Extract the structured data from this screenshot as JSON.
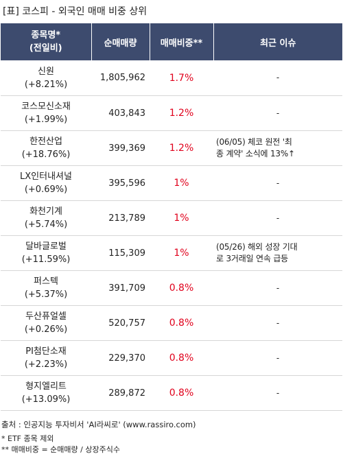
{
  "title": "[표] 코스피 - 외국인 매매 비중 상위",
  "headers": {
    "name_line1": "종목명*",
    "name_line2": "(전일비)",
    "volume": "순매매량",
    "ratio": "매매비중**",
    "issue": "최근 이슈"
  },
  "rows": [
    {
      "name": "신원",
      "change": "(+8.21%)",
      "volume": "1,805,962",
      "ratio": "1.7%",
      "issue_line1": "-",
      "issue_line2": ""
    },
    {
      "name": "코스모신소재",
      "change": "(+1.99%)",
      "volume": "403,843",
      "ratio": "1.2%",
      "issue_line1": "-",
      "issue_line2": ""
    },
    {
      "name": "한전산업",
      "change": "(+18.76%)",
      "volume": "399,369",
      "ratio": "1.2%",
      "issue_line1": "(06/05) 체코 원전 '최",
      "issue_line2": "종 계약' 소식에 13%↑"
    },
    {
      "name": "LX인터내셔널",
      "change": "(+0.69%)",
      "volume": "395,596",
      "ratio": "1%",
      "issue_line1": "-",
      "issue_line2": ""
    },
    {
      "name": "화천기계",
      "change": "(+5.74%)",
      "volume": "213,789",
      "ratio": "1%",
      "issue_line1": "-",
      "issue_line2": ""
    },
    {
      "name": "달바글로벌",
      "change": "(+11.59%)",
      "volume": "115,309",
      "ratio": "1%",
      "issue_line1": "(05/26) 해외 성장 기대",
      "issue_line2": "로 3거래일 연속 급등"
    },
    {
      "name": "퍼스텍",
      "change": "(+5.37%)",
      "volume": "391,709",
      "ratio": "0.8%",
      "issue_line1": "-",
      "issue_line2": ""
    },
    {
      "name": "두산퓨얼셀",
      "change": "(+0.26%)",
      "volume": "520,757",
      "ratio": "0.8%",
      "issue_line1": "-",
      "issue_line2": ""
    },
    {
      "name": "PI첨단소재",
      "change": "(+2.23%)",
      "volume": "229,370",
      "ratio": "0.8%",
      "issue_line1": "-",
      "issue_line2": ""
    },
    {
      "name": "형지엘리트",
      "change": "(+13.09%)",
      "volume": "289,872",
      "ratio": "0.8%",
      "issue_line1": "-",
      "issue_line2": ""
    }
  ],
  "footer": {
    "source": "출처 : 인공지능 투자비서 'AI라씨로' (www.rassiro.com)",
    "note1": "* ETF 종목 제외",
    "note2": "** 매매비중 = 순매매량 / 상장주식수"
  },
  "colors": {
    "header_bg": "#3d4b6e",
    "ratio_red": "#e0001b"
  }
}
